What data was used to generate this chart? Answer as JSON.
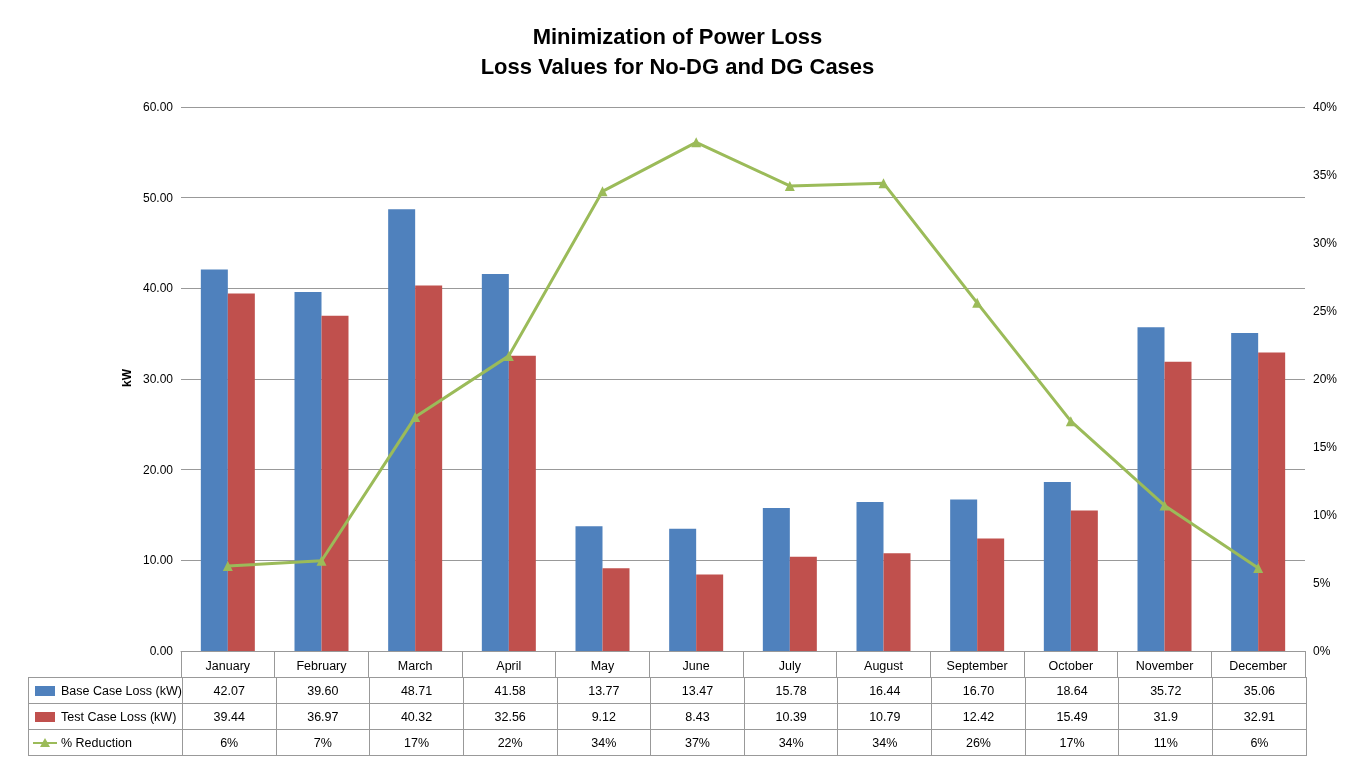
{
  "chart_data": {
    "type": "bar",
    "title": "Minimization of Power Loss",
    "subtitle": "Loss Values for No-DG and DG Cases",
    "ylabel": "kW",
    "categories": [
      "January",
      "February",
      "March",
      "April",
      "May",
      "June",
      "July",
      "August",
      "September",
      "October",
      "November",
      "December"
    ],
    "series": [
      {
        "name": "Base Case Loss (kW)",
        "color": "#4f81bd",
        "values": [
          42.07,
          39.6,
          48.71,
          41.58,
          13.77,
          13.47,
          15.78,
          16.44,
          16.7,
          18.64,
          35.72,
          35.06
        ],
        "value_labels": [
          "42.07",
          "39.60",
          "48.71",
          "41.58",
          "13.77",
          "13.47",
          "15.78",
          "16.44",
          "16.70",
          "18.64",
          "35.72",
          "35.06"
        ]
      },
      {
        "name": "Test Case Loss (kW)",
        "color": "#c0504d",
        "values": [
          39.44,
          36.97,
          40.32,
          32.56,
          9.12,
          8.43,
          10.39,
          10.79,
          12.42,
          15.49,
          31.9,
          32.91
        ],
        "value_labels": [
          "39.44",
          "36.97",
          "40.32",
          "32.56",
          "9.12",
          "8.43",
          "10.39",
          "10.79",
          "12.42",
          "15.49",
          "31.9",
          "32.91"
        ]
      },
      {
        "name": "% Reduction",
        "type": "line",
        "axis": "y2",
        "color": "#9bbb59",
        "values": [
          6.25,
          6.64,
          17.2,
          21.7,
          33.8,
          37.4,
          34.2,
          34.4,
          25.6,
          16.9,
          10.7,
          6.1
        ],
        "value_labels": [
          "6%",
          "7%",
          "17%",
          "22%",
          "34%",
          "37%",
          "34%",
          "34%",
          "26%",
          "17%",
          "11%",
          "6%"
        ]
      }
    ],
    "ylim": [
      0,
      60
    ],
    "yticks": [
      {
        "value": 0,
        "label": "0.00"
      },
      {
        "value": 10,
        "label": "10.00"
      },
      {
        "value": 20,
        "label": "20.00"
      },
      {
        "value": 30,
        "label": "30.00"
      },
      {
        "value": 40,
        "label": "40.00"
      },
      {
        "value": 50,
        "label": "50.00"
      },
      {
        "value": 60,
        "label": "60.00"
      }
    ],
    "y2lim": [
      0,
      40
    ],
    "y2ticks": [
      {
        "value": 0,
        "label": "0%"
      },
      {
        "value": 5,
        "label": "5%"
      },
      {
        "value": 10,
        "label": "10%"
      },
      {
        "value": 15,
        "label": "15%"
      },
      {
        "value": 20,
        "label": "20%"
      },
      {
        "value": 25,
        "label": "25%"
      },
      {
        "value": 30,
        "label": "30%"
      },
      {
        "value": 35,
        "label": "35%"
      },
      {
        "value": 40,
        "label": "40%"
      }
    ],
    "grid": "y",
    "legend": "bottom",
    "marker": "triangle",
    "line_style": "solid"
  }
}
